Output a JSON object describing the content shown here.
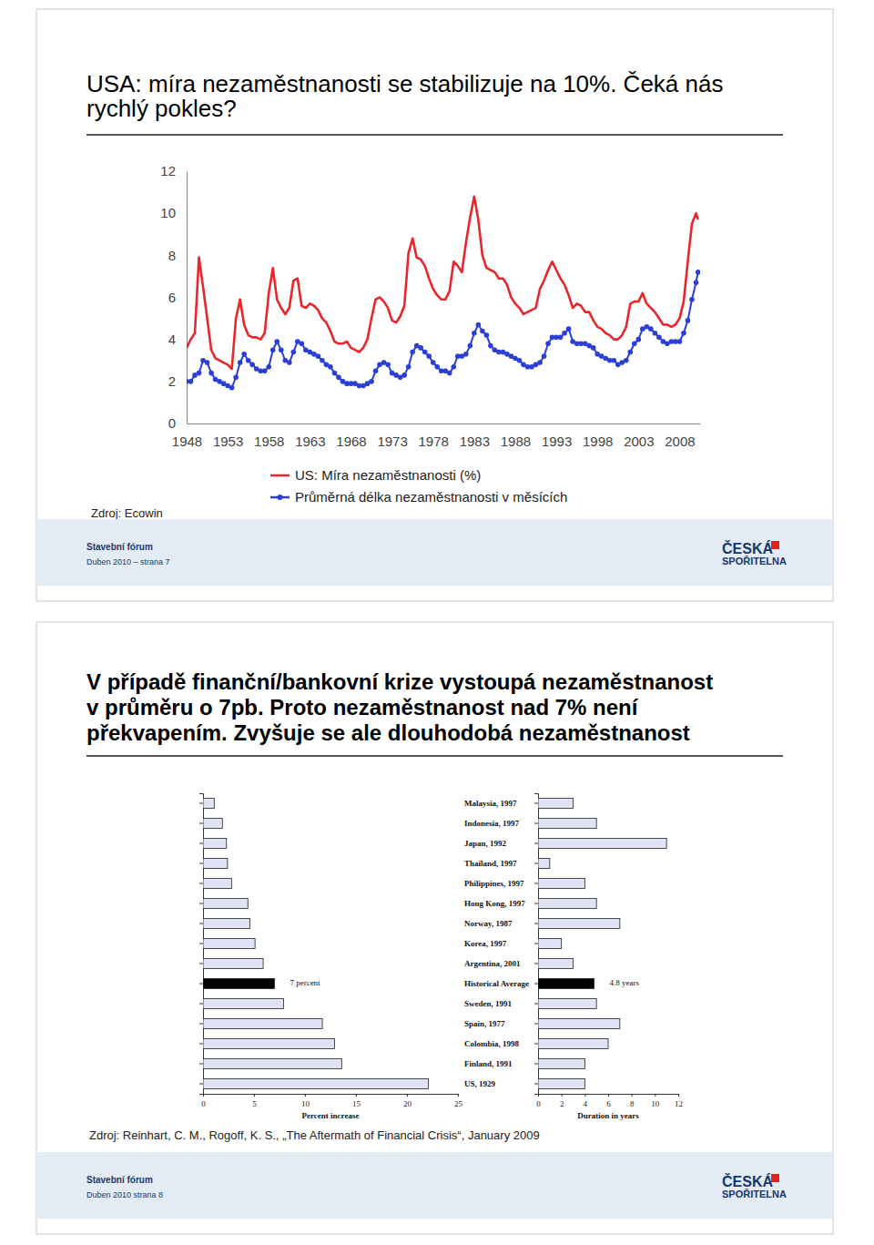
{
  "slides": [
    {
      "title_lines": [
        "USA: míra nezaměstnanosti se stabilizuje na 10%. Čeká nás",
        "rychlý pokles?"
      ],
      "source": "Zdroj: Ecowin",
      "footer": [
        "Stavební fórum",
        "Duben 2010 – strana 7"
      ],
      "logo": [
        "ČESKÁ",
        "SPOŘITELNA"
      ]
    },
    {
      "title_lines": [
        "V případě finanční/bankovní krize vystoupá nezaměstnanost",
        "v průměru o 7pb. Proto nezaměstnanost nad 7% není",
        "překvapením. Zvyšuje se ale dlouhodobá nezaměstnanost"
      ],
      "source": "Zdroj: Reinhart, C. M., Rogoff, K. S., „The Aftermath of Financial Crisis“, January 2009",
      "footer": [
        "Stavební fórum",
        "Duben 2010 strana 8"
      ],
      "logo": [
        "ČESKÁ",
        "SPOŘITELNA"
      ]
    }
  ],
  "chart_data": [
    {
      "type": "line",
      "x": [
        1948,
        1948.5,
        1949,
        1949.5,
        1950,
        1950.5,
        1951,
        1951.5,
        1952,
        1952.5,
        1953,
        1953.5,
        1954,
        1954.5,
        1955,
        1955.5,
        1956,
        1956.5,
        1957,
        1957.5,
        1958,
        1958.5,
        1959,
        1959.5,
        1960,
        1960.5,
        1961,
        1961.5,
        1962,
        1962.5,
        1963,
        1963.5,
        1964,
        1964.5,
        1965,
        1965.5,
        1966,
        1966.5,
        1967,
        1967.5,
        1968,
        1968.5,
        1969,
        1969.5,
        1970,
        1970.5,
        1971,
        1971.5,
        1972,
        1972.5,
        1973,
        1973.5,
        1974,
        1974.5,
        1975,
        1975.5,
        1976,
        1976.5,
        1977,
        1977.5,
        1978,
        1978.5,
        1979,
        1979.5,
        1980,
        1980.5,
        1981,
        1981.5,
        1982,
        1982.5,
        1983,
        1983.5,
        1984,
        1984.5,
        1985,
        1985.5,
        1986,
        1986.5,
        1987,
        1987.5,
        1988,
        1988.5,
        1989,
        1989.5,
        1990,
        1990.5,
        1991,
        1991.5,
        1992,
        1992.5,
        1993,
        1993.5,
        1994,
        1994.5,
        1995,
        1995.5,
        1996,
        1996.5,
        1997,
        1997.5,
        1998,
        1998.5,
        1999,
        1999.5,
        2000,
        2000.5,
        2001,
        2001.5,
        2002,
        2002.5,
        2003,
        2003.5,
        2004,
        2004.5,
        2005,
        2005.5,
        2006,
        2006.5,
        2007,
        2007.5,
        2008,
        2008.5,
        2009,
        2009.5,
        2010,
        2010.25
      ],
      "series": [
        {
          "name": "US: Míra nezaměstnanosti (%)",
          "color": "#e8262b",
          "marker": "none",
          "values": [
            3.6,
            4.0,
            4.3,
            7.9,
            6.5,
            5.0,
            3.5,
            3.1,
            3.0,
            2.9,
            2.8,
            2.6,
            5.0,
            5.9,
            4.7,
            4.2,
            4.1,
            4.1,
            4.0,
            4.3,
            6.2,
            7.4,
            5.9,
            5.5,
            5.2,
            5.5,
            6.8,
            6.9,
            5.6,
            5.5,
            5.7,
            5.6,
            5.4,
            5.0,
            4.8,
            4.4,
            3.9,
            3.8,
            3.8,
            3.9,
            3.6,
            3.5,
            3.4,
            3.6,
            4.0,
            5.0,
            5.9,
            6.0,
            5.8,
            5.5,
            4.9,
            4.8,
            5.1,
            5.6,
            8.1,
            8.8,
            7.9,
            7.8,
            7.5,
            6.9,
            6.4,
            6.1,
            5.9,
            5.9,
            6.3,
            7.7,
            7.5,
            7.2,
            8.6,
            9.8,
            10.8,
            9.7,
            8.0,
            7.4,
            7.3,
            7.2,
            6.9,
            6.9,
            6.6,
            6.0,
            5.7,
            5.5,
            5.2,
            5.3,
            5.4,
            5.5,
            6.4,
            6.8,
            7.3,
            7.7,
            7.3,
            6.9,
            6.6,
            6.1,
            5.5,
            5.7,
            5.6,
            5.3,
            5.3,
            4.9,
            4.6,
            4.5,
            4.3,
            4.2,
            4.0,
            4.0,
            4.2,
            4.6,
            5.7,
            5.8,
            5.8,
            6.2,
            5.7,
            5.5,
            5.3,
            5.0,
            4.7,
            4.7,
            4.6,
            4.7,
            5.0,
            5.8,
            7.7,
            9.5,
            10.0,
            9.7
          ]
        },
        {
          "name": "Průměrná délka nezaměstnanosti v měsících",
          "color": "#2b3fd6",
          "marker": "circle",
          "values": [
            2.0,
            2.0,
            2.3,
            2.4,
            3.0,
            2.9,
            2.4,
            2.1,
            2.0,
            1.9,
            1.8,
            1.7,
            2.2,
            2.9,
            3.3,
            3.0,
            2.8,
            2.6,
            2.5,
            2.5,
            2.7,
            3.5,
            3.9,
            3.5,
            3.0,
            2.9,
            3.4,
            3.9,
            3.8,
            3.5,
            3.4,
            3.3,
            3.2,
            3.0,
            2.8,
            2.7,
            2.4,
            2.2,
            2.0,
            1.9,
            1.9,
            1.9,
            1.8,
            1.8,
            1.9,
            2.0,
            2.5,
            2.8,
            2.9,
            2.8,
            2.4,
            2.3,
            2.2,
            2.3,
            2.7,
            3.4,
            3.7,
            3.6,
            3.4,
            3.2,
            2.9,
            2.7,
            2.5,
            2.5,
            2.4,
            2.7,
            3.2,
            3.2,
            3.3,
            3.7,
            4.3,
            4.7,
            4.4,
            4.2,
            3.7,
            3.5,
            3.4,
            3.4,
            3.3,
            3.2,
            3.1,
            3.0,
            2.8,
            2.7,
            2.7,
            2.8,
            2.9,
            3.2,
            3.8,
            4.1,
            4.1,
            4.1,
            4.3,
            4.5,
            3.9,
            3.8,
            3.8,
            3.8,
            3.7,
            3.6,
            3.3,
            3.2,
            3.1,
            3.0,
            3.0,
            2.8,
            2.9,
            3.0,
            3.4,
            3.8,
            4.0,
            4.5,
            4.6,
            4.5,
            4.3,
            4.1,
            3.9,
            3.8,
            3.9,
            3.9,
            3.9,
            4.3,
            4.9,
            5.9,
            6.7,
            7.2
          ]
        }
      ],
      "xlim": [
        1948,
        2010.5
      ],
      "xticks": [
        1948,
        1953,
        1958,
        1963,
        1968,
        1973,
        1978,
        1983,
        1988,
        1993,
        1998,
        2003,
        2008
      ],
      "ylim": [
        0,
        12
      ],
      "yticks": [
        0,
        2,
        4,
        6,
        8,
        10,
        12
      ],
      "legend": "bottom"
    },
    {
      "type": "bar",
      "orientation": "horizontal",
      "categories": [
        null,
        null,
        null,
        null,
        null,
        null,
        null,
        null,
        null,
        null,
        null,
        null,
        null,
        null,
        null
      ],
      "values": [
        1.1,
        1.9,
        2.3,
        2.4,
        2.8,
        4.4,
        4.6,
        5.1,
        5.9,
        7,
        7.9,
        11.7,
        12.9,
        13.6,
        22.1
      ],
      "colors": [
        "#e0e2f5",
        "#e0e2f5",
        "#e0e2f5",
        "#e0e2f5",
        "#e0e2f5",
        "#e0e2f5",
        "#e0e2f5",
        "#e0e2f5",
        "#e0e2f5",
        "#000000",
        "#e0e2f5",
        "#e0e2f5",
        "#e0e2f5",
        "#e0e2f5",
        "#e0e2f5"
      ],
      "value_labels": [
        null,
        null,
        null,
        null,
        null,
        null,
        null,
        null,
        null,
        "7 percent",
        null,
        null,
        null,
        null,
        null
      ],
      "x_label": "Percent increase",
      "xlim": [
        0,
        25
      ],
      "xticks": [
        0,
        5,
        10,
        15,
        20,
        25
      ]
    },
    {
      "type": "bar",
      "orientation": "horizontal",
      "categories": [
        "Malaysia, 1997",
        "Indonesia, 1997",
        "Japan, 1992",
        "Thailand, 1997",
        "Philippines, 1997",
        "Hong Kong, 1997",
        "Norway, 1987",
        "Korea, 1997",
        "Argentina, 2001",
        "Historical Average",
        "Sweden, 1991",
        "Spain, 1977",
        "Colombia, 1998",
        "Finland, 1991",
        "US, 1929"
      ],
      "values": [
        3,
        5,
        11,
        1,
        4,
        5,
        7,
        2,
        3,
        4.8,
        5,
        7,
        6,
        4,
        4
      ],
      "colors": [
        "#e0e2f5",
        "#e0e2f5",
        "#e0e2f5",
        "#e0e2f5",
        "#e0e2f5",
        "#e0e2f5",
        "#e0e2f5",
        "#e0e2f5",
        "#e0e2f5",
        "#000000",
        "#e0e2f5",
        "#e0e2f5",
        "#e0e2f5",
        "#e0e2f5",
        "#e0e2f5"
      ],
      "value_labels": [
        null,
        null,
        null,
        null,
        null,
        null,
        null,
        null,
        null,
        "4.8 years",
        null,
        null,
        null,
        null,
        null
      ],
      "x_label": "Duration in years",
      "xlim": [
        0,
        12
      ],
      "xticks": [
        0,
        2,
        4,
        6,
        8,
        10,
        12
      ]
    }
  ]
}
